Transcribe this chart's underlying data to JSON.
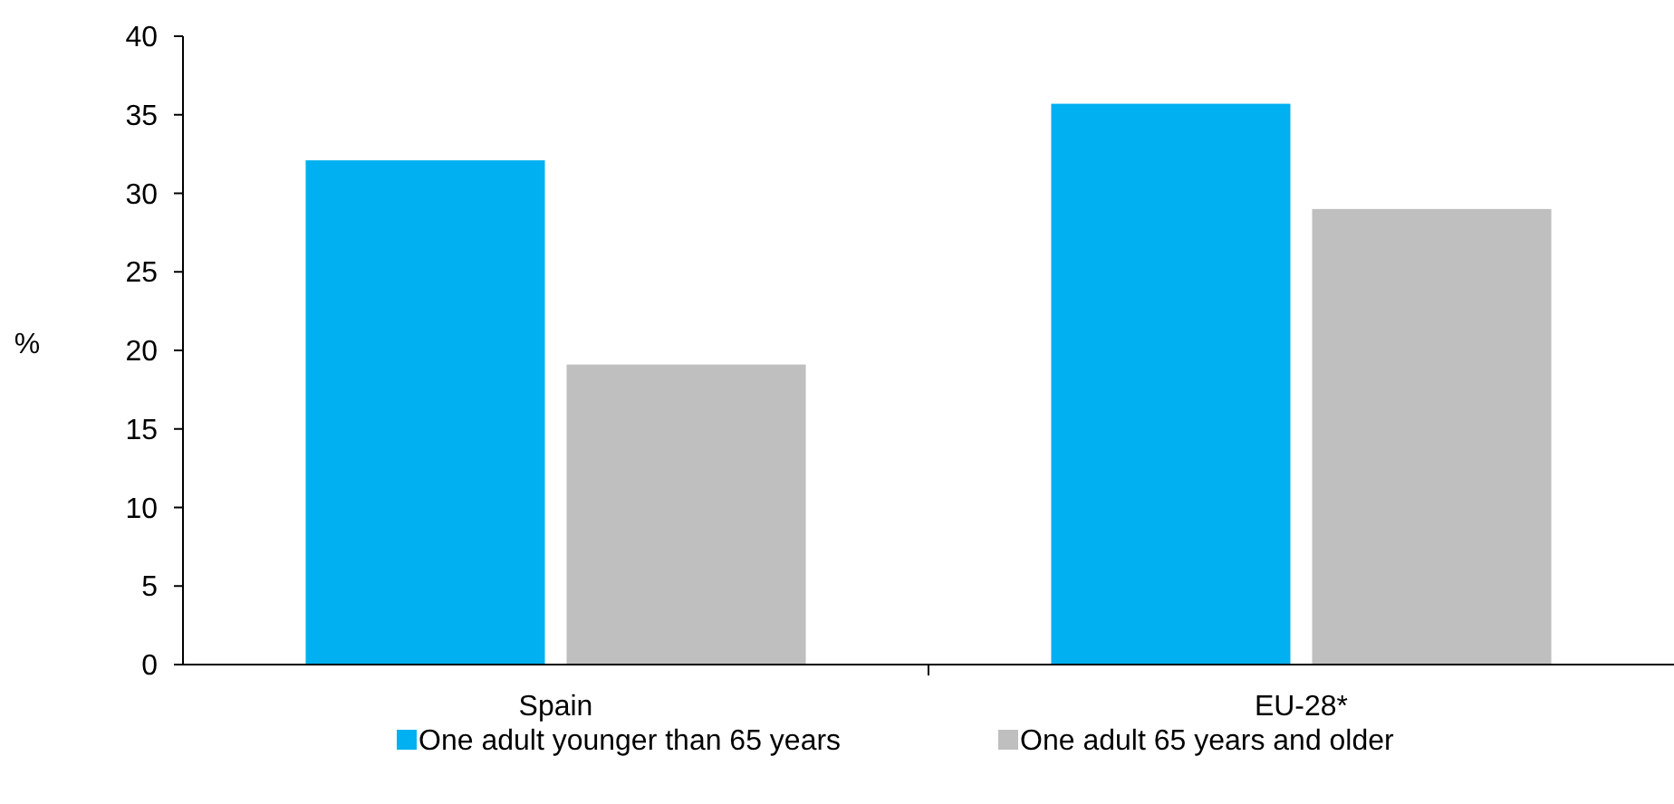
{
  "chart_data": {
    "type": "bar",
    "ylabel": "%",
    "categories": [
      "Spain",
      "EU-28*"
    ],
    "series": [
      {
        "name": "One adult younger than 65 years",
        "color": "#00b0f0",
        "values": [
          32.1,
          35.7
        ]
      },
      {
        "name": "One adult 65 years and older",
        "color": "#bfbfbf",
        "values": [
          19.1,
          29.0
        ]
      }
    ],
    "ylim": [
      0,
      40
    ],
    "yticks": [
      0,
      5,
      10,
      15,
      20,
      25,
      30,
      35,
      40
    ],
    "grid": false,
    "legend": "bottom"
  }
}
